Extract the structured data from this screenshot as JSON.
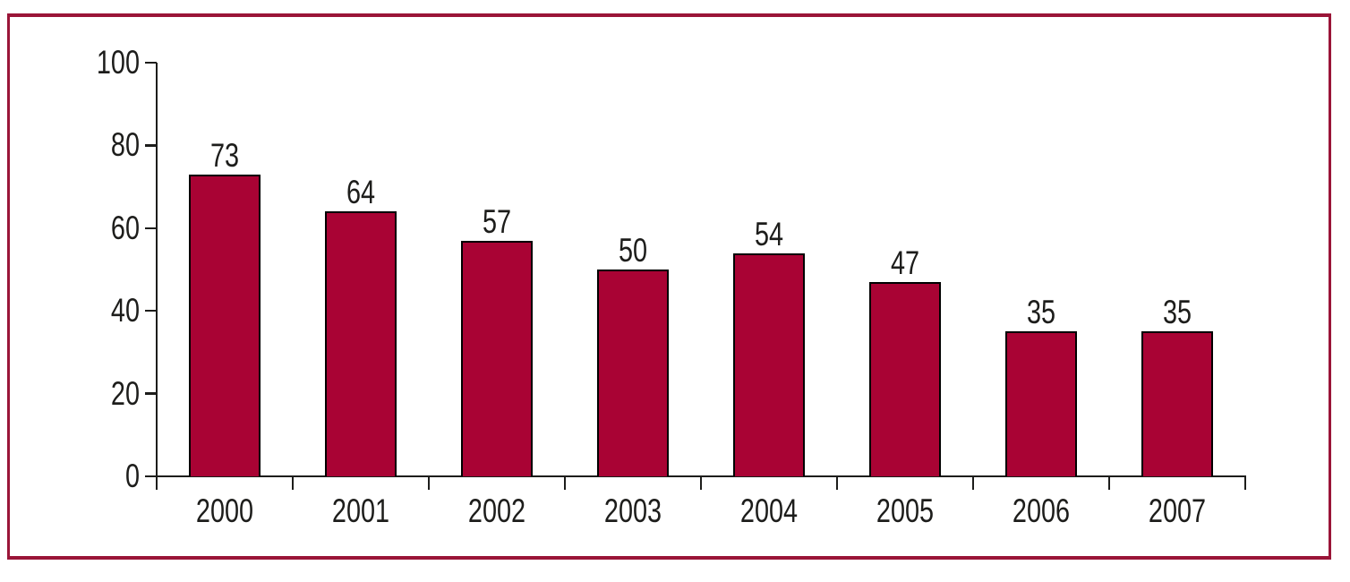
{
  "frame": {
    "border_color": "#9a1538"
  },
  "chart_data": {
    "type": "bar",
    "categories": [
      "2000",
      "2001",
      "2002",
      "2003",
      "2004",
      "2005",
      "2006",
      "2007"
    ],
    "values": [
      73,
      64,
      57,
      50,
      54,
      47,
      35,
      35
    ],
    "yticks": [
      0,
      20,
      40,
      60,
      80,
      100
    ],
    "ylim": [
      0,
      100
    ],
    "title": "",
    "xlabel": "",
    "ylabel": "",
    "grid": false,
    "legend": "none",
    "data_labels": true,
    "bar_color": "#a90334",
    "bar_border_color": "#000000",
    "axis_color": "#1d1d1b",
    "label_color": "#1d1d1b"
  }
}
